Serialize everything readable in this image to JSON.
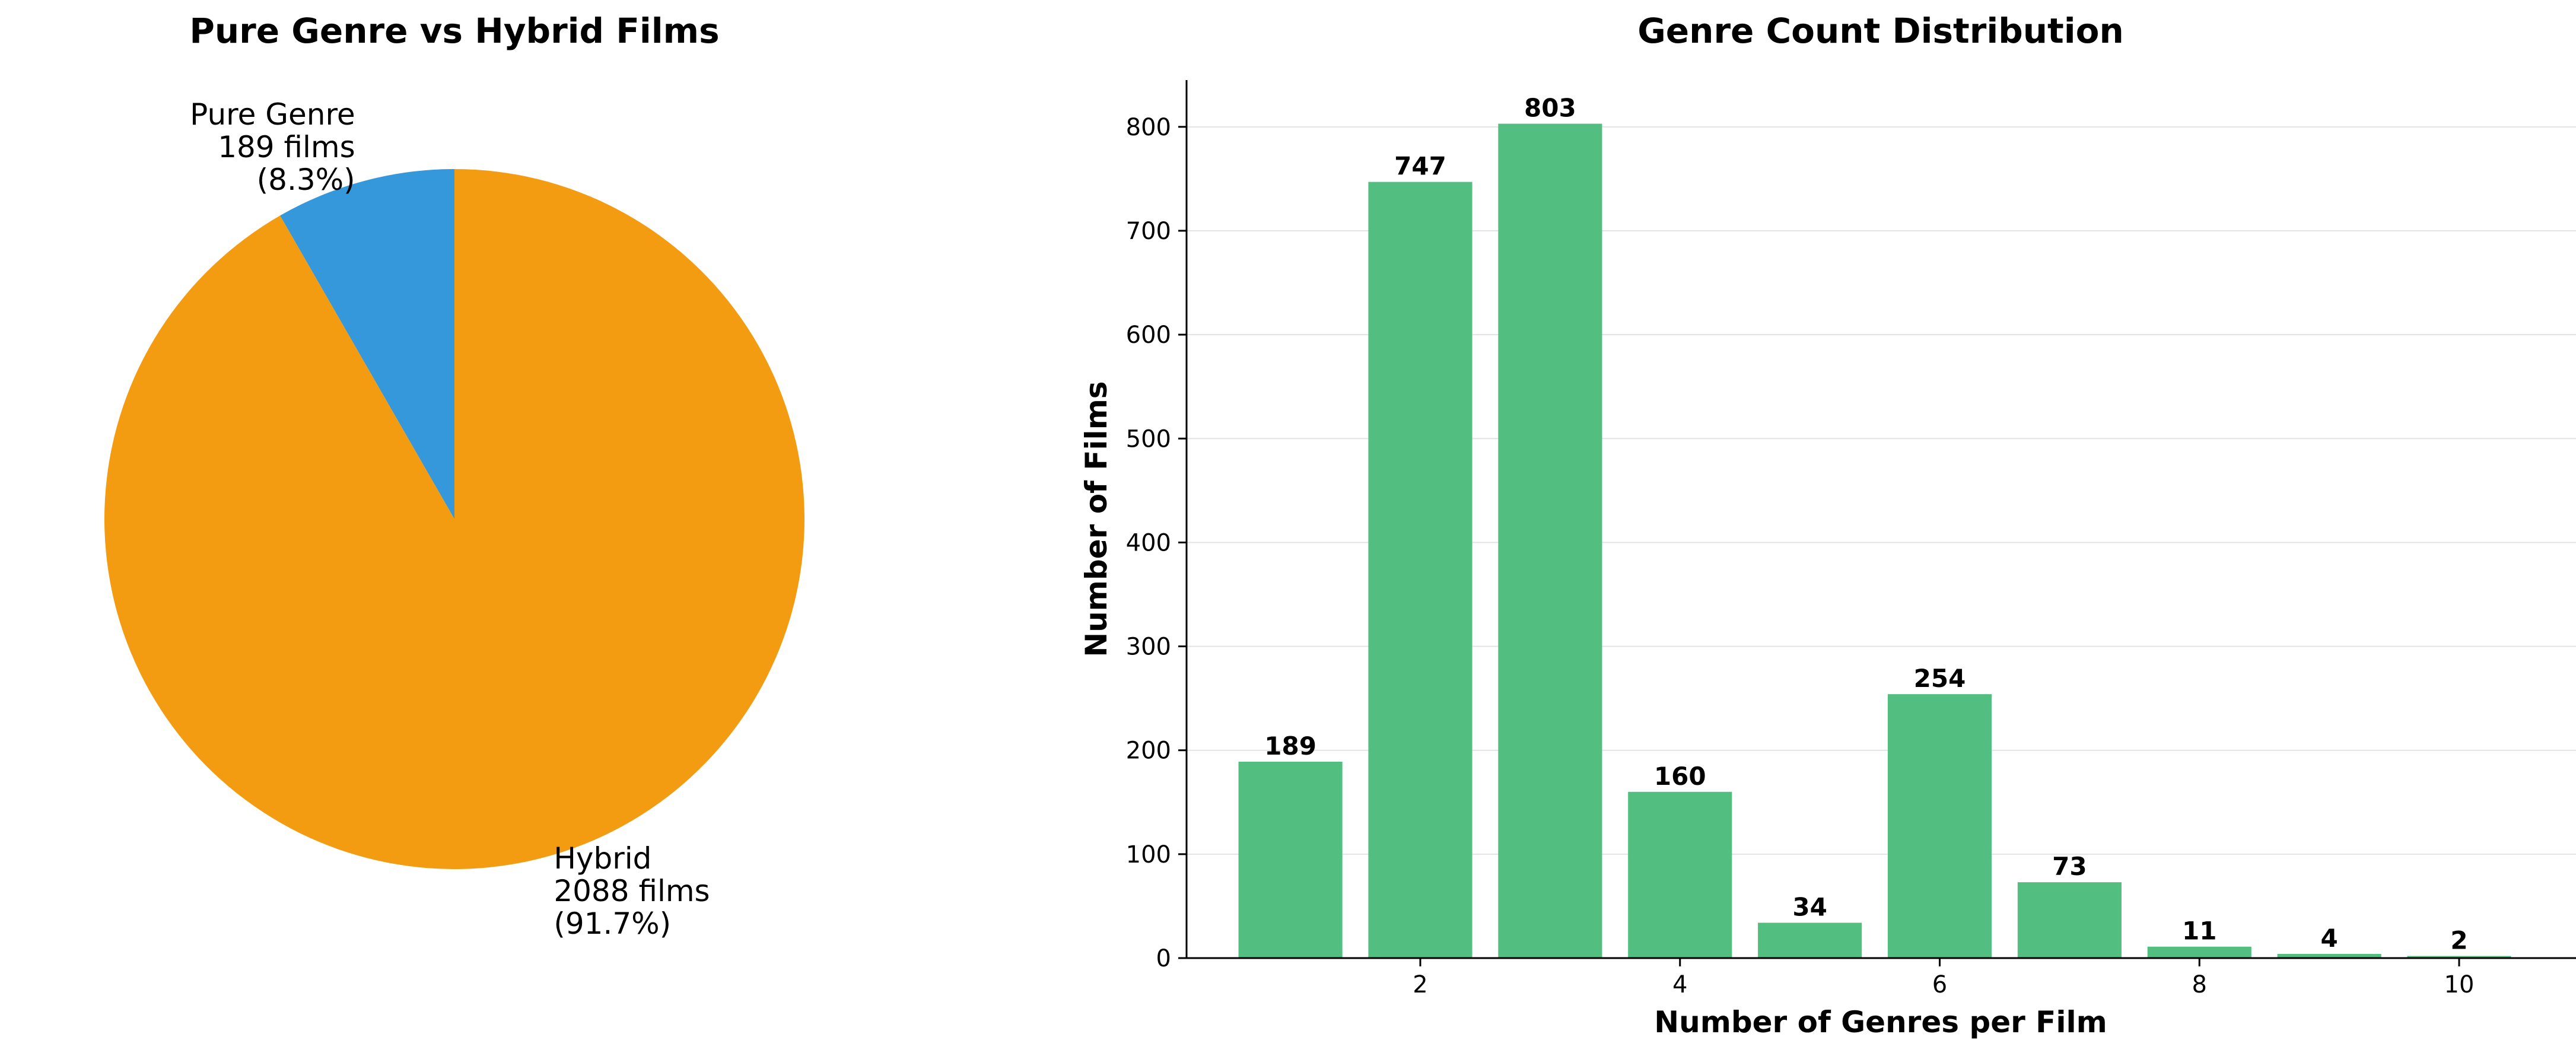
{
  "chart_data": [
    {
      "type": "pie",
      "title": "Pure Genre vs Hybrid Films",
      "slices": [
        {
          "name": "Pure Genre",
          "value": 189,
          "label_lines": [
            "Pure Genre",
            "189 films",
            "(8.3%)"
          ],
          "color": "#3498db"
        },
        {
          "name": "Hybrid",
          "value": 2088,
          "label_lines": [
            "Hybrid",
            "2088 films",
            "(91.7%)"
          ],
          "color": "#f39c12"
        }
      ]
    },
    {
      "type": "bar",
      "title": "Genre Count Distribution",
      "xlabel": "Number of Genres per Film",
      "ylabel": "Number of Films",
      "x": [
        1,
        2,
        3,
        4,
        5,
        6,
        7,
        8,
        9,
        10
      ],
      "values": [
        189,
        747,
        803,
        160,
        34,
        254,
        73,
        11,
        4,
        2
      ],
      "xlim": [
        0.2,
        10.9
      ],
      "ylim": [
        0,
        845
      ],
      "xticks": [
        2,
        4,
        6,
        8,
        10
      ],
      "yticks": [
        0,
        100,
        200,
        300,
        400,
        500,
        600,
        700,
        800
      ],
      "grid": "y",
      "bar_color": "#52be80"
    }
  ]
}
